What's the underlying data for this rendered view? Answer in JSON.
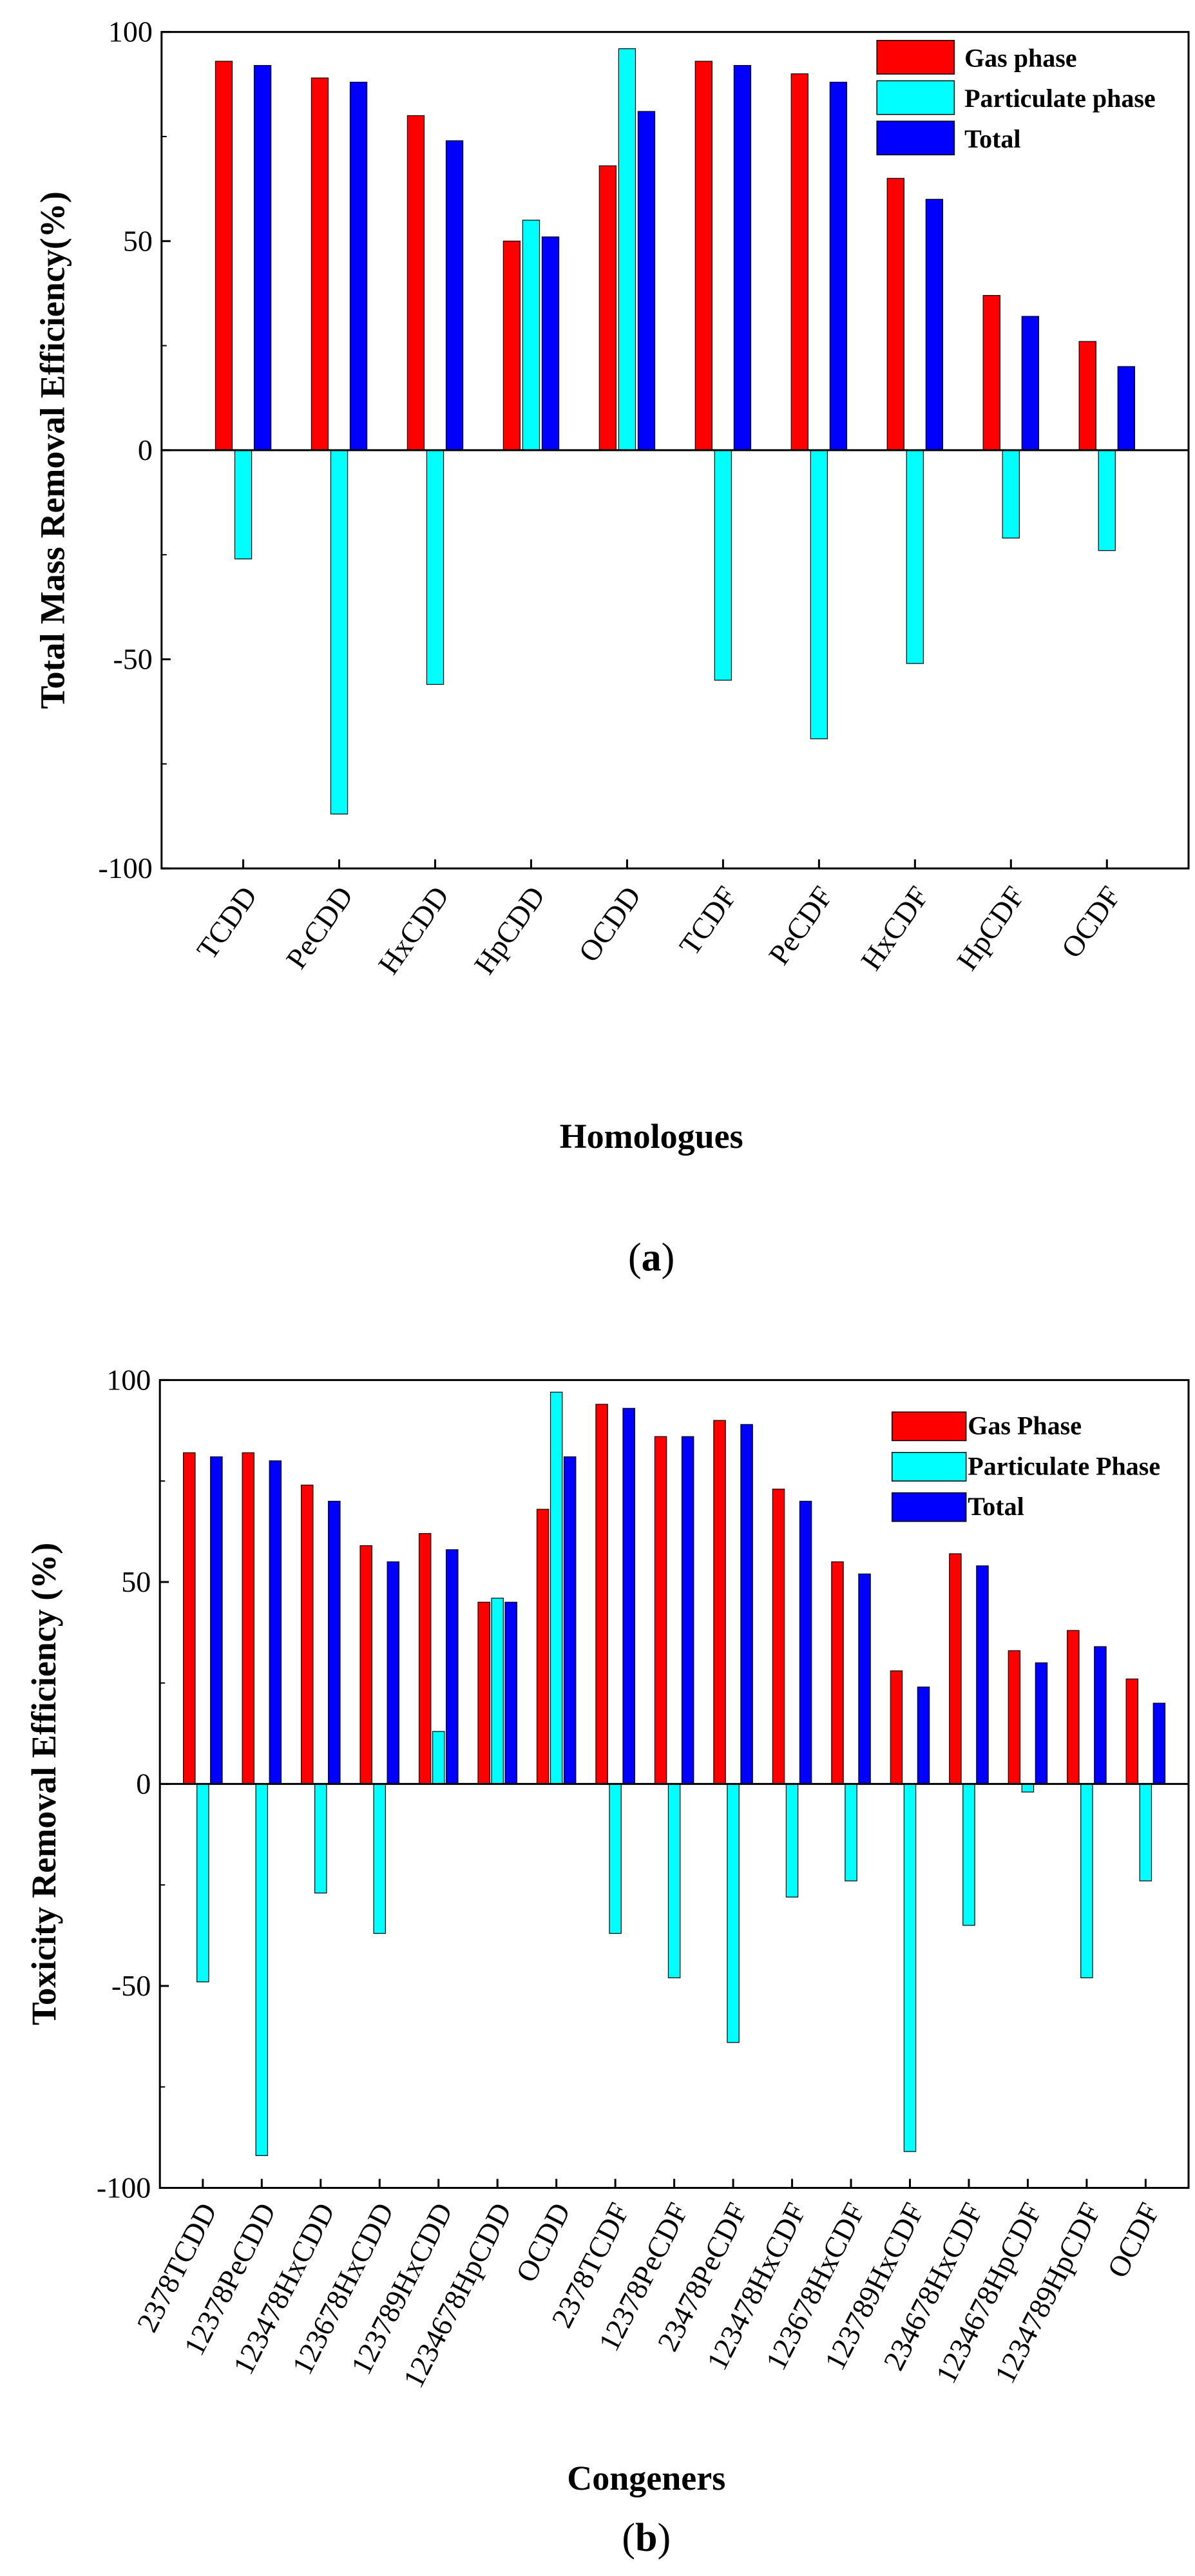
{
  "chart_data": [
    {
      "type": "bar",
      "panel": "a",
      "caption_letter": "a",
      "xlabel": "Homologues",
      "ylabel": "Total Mass Removal Efficiency(%)",
      "ylim": [
        -100,
        100
      ],
      "yticks": [
        100,
        50,
        0,
        -50,
        -100
      ],
      "grid": false,
      "legend_position": "top-right",
      "categories": [
        "TCDD",
        "PeCDD",
        "HxCDD",
        "HpCDD",
        "OCDD",
        "TCDF",
        "PeCDF",
        "HxCDF",
        "HpCDF",
        "OCDF"
      ],
      "series": [
        {
          "name": "Gas phase",
          "color": "#ff0000",
          "values": [
            93,
            89,
            80,
            50,
            68,
            93,
            90,
            65,
            37,
            26
          ]
        },
        {
          "name": "Particulate phase",
          "color": "#00ffff",
          "values": [
            -26,
            -87,
            -56,
            55,
            96,
            -55,
            -69,
            -51,
            -21,
            -24
          ]
        },
        {
          "name": "Total",
          "color": "#0000ff",
          "values": [
            92,
            88,
            74,
            51,
            81,
            92,
            88,
            60,
            32,
            20
          ]
        }
      ]
    },
    {
      "type": "bar",
      "panel": "b",
      "caption_letter": "b",
      "xlabel": "Congeners",
      "ylabel": "Toxicity Removal Efficiency (%)",
      "ylim": [
        -100,
        100
      ],
      "yticks": [
        100,
        50,
        0,
        -50,
        -100
      ],
      "grid": false,
      "legend_position": "top-right",
      "categories": [
        "2378TCDD",
        "12378PeCDD",
        "123478HxCDD",
        "123678HxCDD",
        "123789HxCDD",
        "1234678HpCDD",
        "OCDD",
        "2378TCDF",
        "12378PeCDF",
        "23478PeCDF",
        "123478HxCDF",
        "123678HxCDF",
        "123789HxCDF",
        "234678HxCDF",
        "1234678HpCDF",
        "1234789HpCDF",
        "OCDF"
      ],
      "series": [
        {
          "name": "Gas Phase",
          "color": "#ff0000",
          "values": [
            82,
            82,
            74,
            59,
            62,
            45,
            68,
            94,
            86,
            90,
            73,
            55,
            28,
            57,
            33,
            38,
            26
          ]
        },
        {
          "name": "Particulate Phase",
          "color": "#00ffff",
          "values": [
            -49,
            -92,
            -27,
            -37,
            13,
            46,
            97,
            -37,
            -48,
            -64,
            -28,
            -24,
            -91,
            -35,
            -2,
            -48,
            -24
          ]
        },
        {
          "name": "Total",
          "color": "#0000ff",
          "values": [
            81,
            80,
            70,
            55,
            58,
            45,
            81,
            93,
            86,
            89,
            70,
            52,
            24,
            54,
            30,
            34,
            20
          ]
        }
      ]
    }
  ]
}
